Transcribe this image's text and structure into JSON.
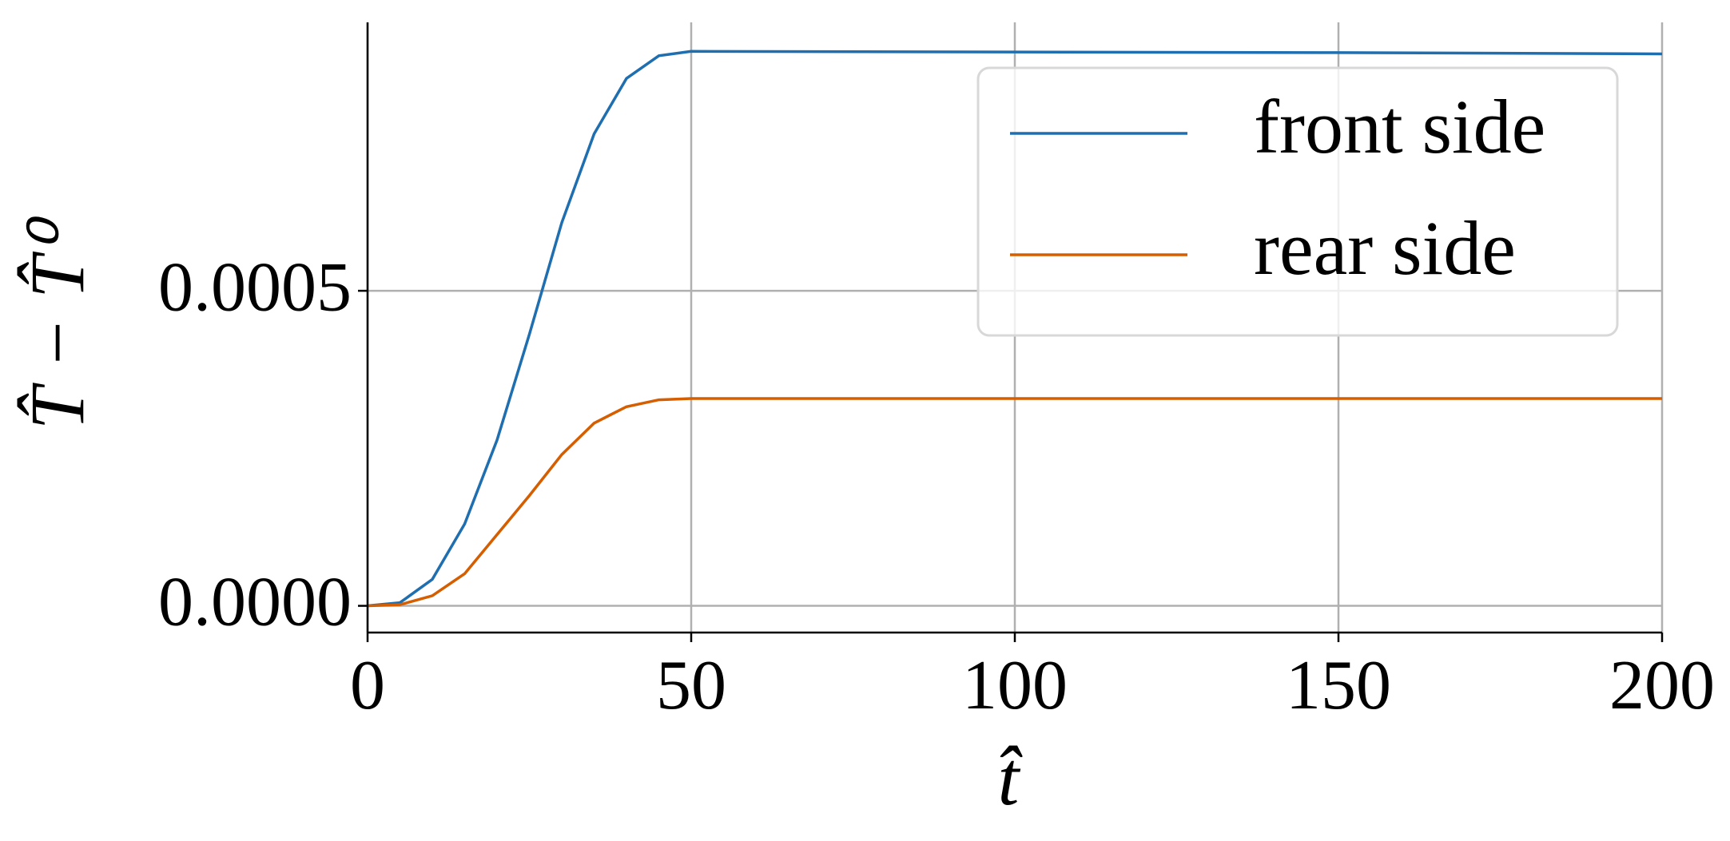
{
  "chart_data": {
    "type": "line",
    "x_label": "t̂",
    "y_label": "T̂ − T̂⁰",
    "x": [
      0,
      5,
      10,
      15,
      20,
      25,
      30,
      35,
      40,
      45,
      50,
      100,
      150,
      200
    ],
    "series": [
      {
        "name": "front side",
        "color": "#1f6fb0",
        "values": [
          0,
          5e-06,
          4.2e-05,
          0.00013,
          0.000263,
          0.000431,
          0.000608,
          0.000749,
          0.000837,
          0.000873,
          0.00088,
          0.000879,
          0.000878,
          0.000876
        ]
      },
      {
        "name": "rear side",
        "color": "#d55e00",
        "values": [
          0,
          1.8e-06,
          1.6e-05,
          5.1e-05,
          0.000113,
          0.000175,
          0.00024,
          0.00029,
          0.000316,
          0.000327,
          0.000329,
          0.000329,
          0.000329,
          0.000329
        ]
      }
    ],
    "xlim": [
      0,
      200
    ],
    "xticks": [
      0,
      50,
      100,
      150,
      200
    ],
    "ylim": [
      -4.24e-05,
      0.000926
    ],
    "yticks": [
      {
        "value": 0,
        "label": "0.0000"
      },
      {
        "value": 0.0005,
        "label": "0.0005"
      }
    ],
    "grid": true,
    "legend": "upper right"
  }
}
